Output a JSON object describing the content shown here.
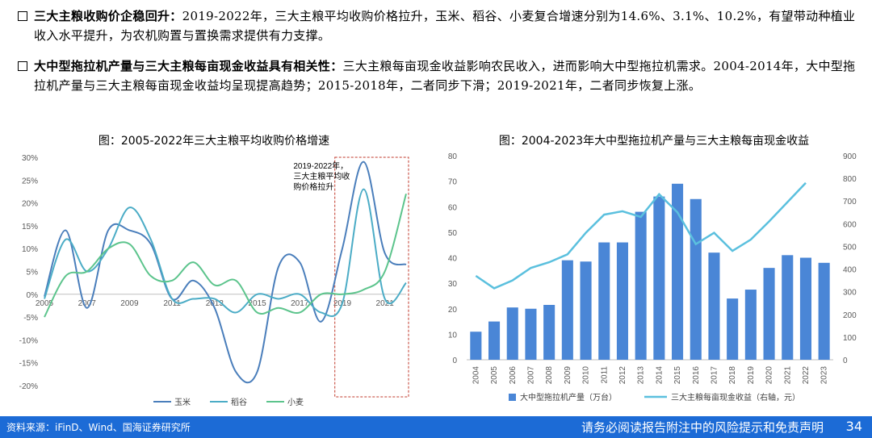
{
  "bullets": [
    {
      "head": "三大主粮收购价企稳回升：",
      "body": "2019-2022年，三大主粮平均收购价格拉升，玉米、稻谷、小麦复合增速分别为14.6%、3.1%、10.2%，有望带动种植业收入水平提升，为农机购置与置换需求提供有力支撑。"
    },
    {
      "head": "大中型拖拉机产量与三大主粮每亩现金收益具有相关性：",
      "body": "三大主粮每亩现金收益影响农民收入，进而影响大中型拖拉机需求。2004-2014年，大中型拖拉机产量与三大主粮每亩现金收益均呈现提高趋势；2015-2018年，二者同步下滑；2019-2021年，二者同步恢复上涨。"
    }
  ],
  "chart_data": [
    {
      "type": "line",
      "title": "图：2005-2022年三大主粮平均收购价格增速",
      "x": [
        2005,
        2006,
        2007,
        2008,
        2009,
        2010,
        2011,
        2012,
        2013,
        2014,
        2015,
        2016,
        2017,
        2018,
        2019,
        2020,
        2021,
        2022
      ],
      "x_tick_labels": [
        "2005",
        "2007",
        "2009",
        "2011",
        "2013",
        "2015",
        "2017",
        "2019",
        "2021"
      ],
      "y_tick_labels": [
        "30%",
        "25%",
        "20%",
        "15%",
        "10%",
        "5%",
        "0%",
        "-5%",
        "-10%",
        "-15%",
        "-20%"
      ],
      "ylim": [
        -20,
        30
      ],
      "series": [
        {
          "name": "玉米",
          "color": "#4a7ebb",
          "values": [
            -0.5,
            14,
            -3,
            14,
            14,
            11,
            -1,
            3,
            -3,
            -17,
            -17,
            6,
            7,
            -6,
            10,
            29,
            9,
            6.5
          ]
        },
        {
          "name": "稻谷",
          "color": "#4bacc6",
          "values": [
            -1,
            12,
            5,
            10,
            19,
            12,
            -1,
            -1,
            -1,
            -4,
            0,
            -1,
            0,
            -4,
            -2,
            23,
            -1,
            2.5
          ]
        },
        {
          "name": "小麦",
          "color": "#5cc48c",
          "values": [
            -5,
            4,
            5,
            10,
            11,
            4,
            3,
            7,
            2,
            3,
            -4,
            -3,
            -4,
            0,
            0,
            1,
            5,
            22
          ]
        }
      ],
      "annotation": "2019-2022年，三大主粮平均收购价格拉升",
      "legend_position": "bottom"
    },
    {
      "type": "bar",
      "title": "图：2004-2023年大中型拖拉机产量与三大主粮每亩现金收益",
      "categories": [
        "2004",
        "2005",
        "2006",
        "2007",
        "2008",
        "2009",
        "2010",
        "2011",
        "2012",
        "2013",
        "2014",
        "2015",
        "2016",
        "2017",
        "2018",
        "2019",
        "2020",
        "2021",
        "2022",
        "2023"
      ],
      "left_ticks": [
        "80",
        "70",
        "60",
        "50",
        "40",
        "30",
        "20",
        "10",
        "0"
      ],
      "right_ticks": [
        "900",
        "800",
        "700",
        "600",
        "500",
        "400",
        "300",
        "200",
        "100",
        "0"
      ],
      "ylim_left": [
        0,
        80
      ],
      "ylim_right": [
        0,
        900
      ],
      "series": [
        {
          "name": "大中型拖拉机产量（万台）",
          "type": "bar",
          "axis": "left",
          "color": "#4a86d6",
          "values": [
            11,
            15,
            20.5,
            20,
            21.5,
            39,
            38.5,
            46,
            46,
            58,
            64,
            69,
            63,
            42,
            24,
            27.5,
            36,
            41,
            40,
            38
          ]
        },
        {
          "name": "三大主粮每亩现金收益（右轴，元）",
          "type": "line",
          "axis": "right",
          "color": "#5bc0de",
          "values": [
            370,
            315,
            350,
            405,
            430,
            465,
            560,
            640,
            655,
            630,
            730,
            650,
            510,
            560,
            480,
            530,
            610,
            695,
            780,
            null
          ]
        }
      ],
      "legend_position": "bottom"
    }
  ],
  "footer": {
    "source": "资料来源：iFinD、Wind、国海证券研究所",
    "disclaimer": "请务必阅读报告附注中的风险提示和免责声明",
    "page": "34"
  }
}
